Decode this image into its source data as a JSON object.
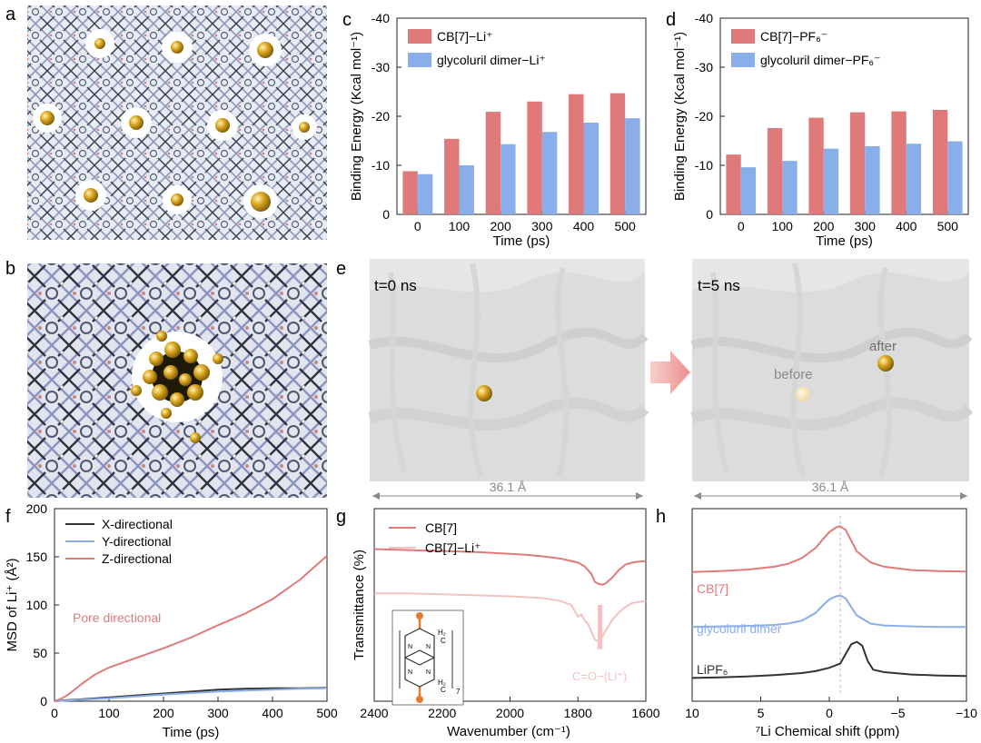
{
  "colors": {
    "red": "#e07a7a",
    "blue": "#8aaeea",
    "black": "#333333",
    "pink_light": "#f2c2c0",
    "gold": "#d9a520",
    "arrow": "#f2a7a5",
    "gray_text": "#8a8a8a"
  },
  "panels": {
    "a": {
      "letter": "a"
    },
    "b": {
      "letter": "b"
    },
    "e": {
      "letter": "e",
      "left_label": "t=0 ns",
      "right_label": "t=5 ns",
      "before_label": "before",
      "after_label": "after",
      "dimension_left": "36.1 Å",
      "dimension_right": "36.1 Å"
    },
    "g": {
      "letter": "g",
      "xlabel": "Wavenumber (cm⁻¹)",
      "ylabel": "Transmittance (%)",
      "annotation": "C=O−(Li⁺)",
      "inset_labels": {
        "h2": "H₂",
        "c": "C",
        "n": "N",
        "repeat": "7"
      }
    },
    "h": {
      "letter": "h",
      "xlabel": "⁷Li Chemical shift (ppm)",
      "label_cb7": "CB[7]",
      "label_dimer": "glycoluril dimer",
      "label_lipf6": "LiPF₆"
    }
  },
  "chart_data": [
    {
      "id": "c",
      "letter": "c",
      "type": "bar",
      "categories": [
        "0",
        "100",
        "200",
        "300",
        "400",
        "500"
      ],
      "series": [
        {
          "name": "CB[7]−Li⁺",
          "color": "#e07a7a",
          "values": [
            -8.8,
            -15.4,
            -20.9,
            -23.0,
            -24.5,
            -24.7
          ]
        },
        {
          "name": "glycoluril dimer−Li⁺",
          "color": "#8aaeea",
          "values": [
            -8.2,
            -10.0,
            -14.3,
            -16.8,
            -18.7,
            -19.6
          ]
        }
      ],
      "xlabel": "Time (ps)",
      "ylabel": "Binding Energy (Kcal mol⁻¹)",
      "yticks": [
        "-40",
        "-30",
        "-20",
        "-10",
        "0"
      ],
      "ylim": [
        0,
        -40
      ],
      "legend_placement": "top-left"
    },
    {
      "id": "d",
      "letter": "d",
      "type": "bar",
      "categories": [
        "0",
        "100",
        "200",
        "300",
        "400",
        "500"
      ],
      "series": [
        {
          "name": "CB[7]−PF₆⁻",
          "color": "#e07a7a",
          "values": [
            -12.2,
            -17.6,
            -19.7,
            -20.8,
            -21.0,
            -21.3
          ]
        },
        {
          "name": "glycoluril dimer−PF₆⁻",
          "color": "#8aaeea",
          "values": [
            -9.6,
            -10.9,
            -13.4,
            -13.9,
            -14.4,
            -14.9
          ]
        }
      ],
      "xlabel": "Time (ps)",
      "ylabel": "Binding Energy (Kcal mol⁻¹)",
      "yticks": [
        "-40",
        "-30",
        "-20",
        "-10",
        "0"
      ],
      "ylim": [
        0,
        -40
      ],
      "legend_placement": "top-left"
    },
    {
      "id": "f",
      "letter": "f",
      "type": "line",
      "xlabel": "Time (ps)",
      "ylabel": "MSD of Li⁺ (Å²)",
      "xlim": [
        0,
        500
      ],
      "ylim": [
        0,
        200
      ],
      "xticks": [
        "0",
        "100",
        "200",
        "300",
        "400",
        "500"
      ],
      "yticks": [
        "0",
        "50",
        "100",
        "150",
        "200"
      ],
      "annotation": "Pore directional",
      "legend_placement": "top-left",
      "series": [
        {
          "name": "X-directional",
          "color": "#333333",
          "x": [
            0,
            20,
            50,
            100,
            150,
            200,
            250,
            300,
            350,
            400,
            450,
            500
          ],
          "y": [
            0,
            1,
            2,
            4,
            6,
            8,
            10,
            12,
            13,
            13.5,
            13.5,
            14
          ]
        },
        {
          "name": "Y-directional",
          "color": "#8aaeea",
          "x": [
            0,
            20,
            50,
            100,
            150,
            200,
            250,
            300,
            350,
            400,
            450,
            500
          ],
          "y": [
            0,
            0.8,
            1.5,
            3,
            5,
            7,
            8.5,
            10,
            11,
            12,
            13,
            13.5
          ]
        },
        {
          "name": "Z-directional",
          "color": "#e07a7a",
          "x": [
            0,
            10,
            20,
            30,
            50,
            75,
            100,
            150,
            200,
            250,
            300,
            350,
            400,
            450,
            500
          ],
          "y": [
            0,
            2,
            5,
            9,
            18,
            28,
            35,
            45,
            55,
            66,
            79,
            91,
            106,
            126,
            151
          ]
        }
      ]
    },
    {
      "id": "g",
      "type": "line",
      "xlim": [
        2400,
        1600
      ],
      "xticks": [
        "2400",
        "2200",
        "2000",
        "1800",
        "1600"
      ],
      "legend_placement": "top-left",
      "series": [
        {
          "name": "CB[7]",
          "color": "#e07a7a",
          "x": [
            2400,
            2300,
            2200,
            2100,
            2000,
            1950,
            1900,
            1850,
            1800,
            1780,
            1760,
            1750,
            1740,
            1730,
            1720,
            1700,
            1680,
            1660,
            1640,
            1620,
            1600
          ],
          "y": [
            0.79,
            0.785,
            0.78,
            0.775,
            0.765,
            0.76,
            0.752,
            0.74,
            0.72,
            0.7,
            0.66,
            0.62,
            0.61,
            0.605,
            0.61,
            0.64,
            0.68,
            0.71,
            0.72,
            0.725,
            0.728
          ]
        },
        {
          "name": "CB[7]−Li⁺",
          "color": "#f2c2c0",
          "x": [
            2400,
            2300,
            2200,
            2100,
            2000,
            1950,
            1900,
            1850,
            1820,
            1810,
            1800,
            1790,
            1780,
            1770,
            1760,
            1750,
            1740,
            1730,
            1720,
            1700,
            1680,
            1660,
            1640,
            1620,
            1600
          ],
          "y": [
            0.56,
            0.56,
            0.555,
            0.55,
            0.545,
            0.54,
            0.535,
            0.52,
            0.5,
            0.47,
            0.44,
            0.45,
            0.42,
            0.4,
            0.36,
            0.32,
            0.31,
            0.33,
            0.36,
            0.42,
            0.46,
            0.49,
            0.51,
            0.515,
            0.52
          ]
        }
      ]
    },
    {
      "id": "h",
      "type": "line",
      "xlim": [
        10,
        -10
      ],
      "xticks": [
        "10",
        "5",
        "0",
        "−5",
        "−10"
      ],
      "dashed_reference_x": -0.8,
      "series": [
        {
          "name": "CB[7]",
          "color": "#e07a7a",
          "offset": 2.2,
          "x": [
            10,
            8,
            6,
            4,
            3,
            2,
            1,
            0.5,
            0,
            -0.5,
            -0.8,
            -1.2,
            -1.6,
            -2,
            -3,
            -4,
            -6,
            -8,
            -10
          ],
          "y": [
            0.05,
            0.07,
            0.1,
            0.16,
            0.22,
            0.34,
            0.55,
            0.72,
            0.88,
            0.98,
            1.0,
            0.92,
            0.7,
            0.48,
            0.25,
            0.16,
            0.09,
            0.07,
            0.06
          ]
        },
        {
          "name": "glycoluril dimer",
          "color": "#8aaeea",
          "offset": 1.1,
          "x": [
            10,
            8,
            6,
            4,
            3,
            2,
            1,
            0.5,
            0,
            -0.5,
            -0.8,
            -1.2,
            -1.6,
            -2,
            -3,
            -4,
            -6,
            -8,
            -10
          ],
          "y": [
            0.01,
            0.02,
            0.03,
            0.05,
            0.08,
            0.14,
            0.3,
            0.45,
            0.58,
            0.65,
            0.66,
            0.6,
            0.42,
            0.25,
            0.08,
            0.04,
            0.02,
            0.01,
            0.01
          ]
        },
        {
          "name": "LiPF₆",
          "color": "#333333",
          "offset": 0.0,
          "x": [
            10,
            8,
            6,
            4,
            2,
            1,
            0,
            -0.8,
            -1.2,
            -1.6,
            -2,
            -2.4,
            -2.8,
            -3.2,
            -4,
            -6,
            -8,
            -10
          ],
          "y": [
            0.05,
            0.06,
            0.08,
            0.11,
            0.15,
            0.19,
            0.26,
            0.35,
            0.55,
            0.75,
            0.8,
            0.72,
            0.4,
            0.22,
            0.17,
            0.12,
            0.1,
            0.09
          ]
        }
      ]
    }
  ]
}
